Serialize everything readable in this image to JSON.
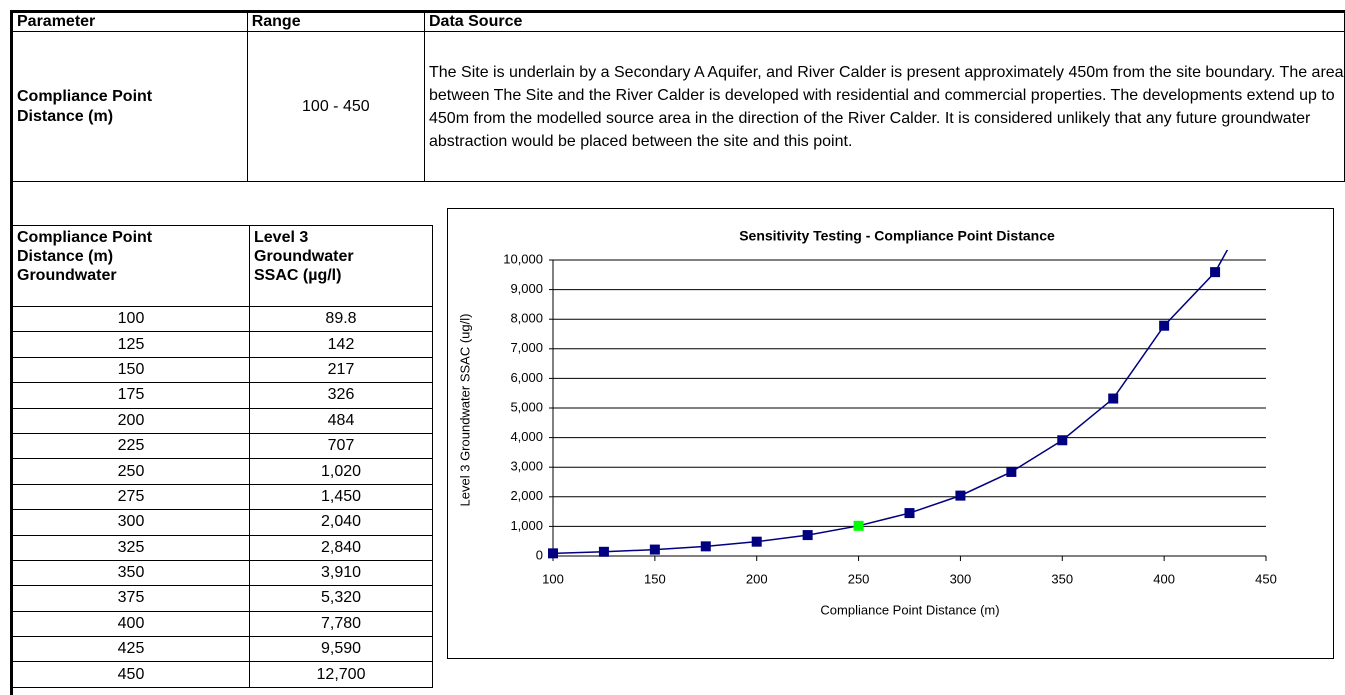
{
  "parameter_table": {
    "headers": [
      "Parameter",
      "Range",
      "Data Source"
    ],
    "rows": [
      [
        "Compliance Point Distance (m)",
        "100 - 450",
        "The Site is underlain by a Secondary A Aquifer, and River Calder is present approximately 450m from the site boundary. The area between The Site and the River Calder is developed with residential and commercial properties. The developments extend up to 450m from the modelled source area in the direction of the River Calder. It is considered unlikely that any future groundwater abstraction would be placed between the site and this point."
      ]
    ]
  },
  "sensitivity_table": {
    "headers": [
      [
        "Compliance Point",
        "Distance (m)",
        "Groundwater"
      ],
      [
        "Level 3",
        "Groundwater",
        "SSAC (µg/l)"
      ]
    ],
    "rows": [
      [
        "100",
        "89.8"
      ],
      [
        "125",
        "142"
      ],
      [
        "150",
        "217"
      ],
      [
        "175",
        "326"
      ],
      [
        "200",
        "484"
      ],
      [
        "225",
        "707"
      ],
      [
        "250",
        "1,020"
      ],
      [
        "275",
        "1,450"
      ],
      [
        "300",
        "2,040"
      ],
      [
        "325",
        "2,840"
      ],
      [
        "350",
        "3,910"
      ],
      [
        "375",
        "5,320"
      ],
      [
        "400",
        "7,780"
      ],
      [
        "425",
        "9,590"
      ],
      [
        "450",
        "12,700"
      ]
    ]
  },
  "chart_data": {
    "type": "line",
    "title": "Sensitivity Testing - Compliance Point Distance",
    "x_label": "Compliance Point Distance (m)",
    "y_label": "Level 3 Groundwater SSAC (ug/l)",
    "x": [
      100,
      125,
      150,
      175,
      200,
      225,
      250,
      275,
      300,
      325,
      350,
      375,
      400,
      425,
      450
    ],
    "values": [
      89.8,
      142,
      217,
      326,
      484,
      707,
      1020,
      1450,
      2040,
      2840,
      3910,
      5320,
      7780,
      9590,
      12700
    ],
    "color": "#000080",
    "highlight_x": 250,
    "highlight_color": "#00ff00",
    "xlim": [
      100,
      450
    ],
    "xticks": [
      100,
      150,
      200,
      250,
      300,
      350,
      400,
      450
    ],
    "ylim": [
      0,
      10000
    ],
    "yticks": [
      0,
      {
        "value": 1000,
        "label": "1,000"
      },
      {
        "value": 2000,
        "label": "2,000"
      },
      {
        "value": 3000,
        "label": "3,000"
      },
      {
        "value": 4000,
        "label": "4,000"
      },
      {
        "value": 5000,
        "label": "5,000"
      },
      {
        "value": 6000,
        "label": "6,000"
      },
      {
        "value": 7000,
        "label": "7,000"
      },
      {
        "value": 8000,
        "label": "8,000"
      },
      {
        "value": 9000,
        "label": "9,000"
      },
      {
        "value": 10000,
        "label": "10,000"
      }
    ],
    "grid": true
  }
}
